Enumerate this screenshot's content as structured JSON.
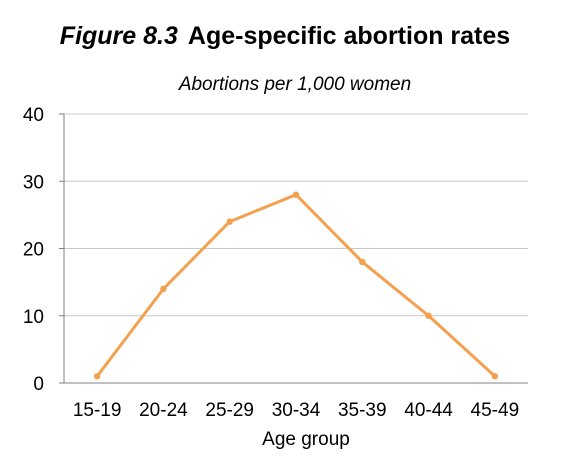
{
  "chart_data": {
    "type": "line",
    "figure_label": "Figure 8.3",
    "title": "Age-specific abortion rates",
    "subtitle": "Abortions per 1,000 women",
    "xlabel": "Age group",
    "ylabel": "",
    "categories": [
      "15-19",
      "20-24",
      "25-29",
      "30-34",
      "35-39",
      "40-44",
      "45-49"
    ],
    "series": [
      {
        "values": [
          1,
          14,
          24,
          28,
          18,
          10,
          1
        ]
      }
    ],
    "ylim": [
      0,
      40
    ],
    "yticks": [
      0,
      10,
      20,
      30,
      40
    ],
    "grid": true,
    "legend": "none",
    "line_color": "#f4a14f",
    "grid_color": "#c8c8c8",
    "axis_color": "#808080"
  }
}
